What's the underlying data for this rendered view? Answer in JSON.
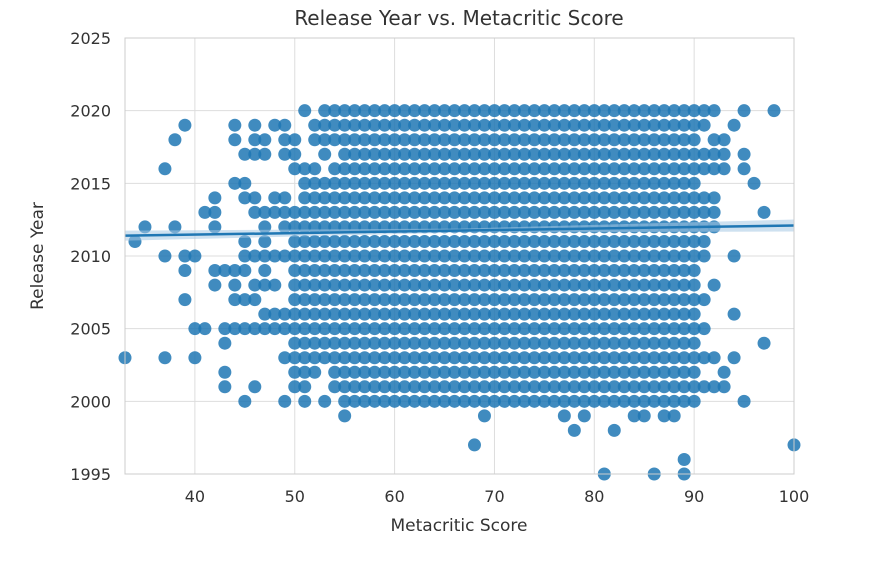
{
  "chart_data": {
    "type": "scatter",
    "title": "Release Year vs. Metacritic Score",
    "xlabel": "Metacritic Score",
    "ylabel": "Release Year",
    "xlim": [
      33,
      100
    ],
    "ylim": [
      1995,
      2025
    ],
    "xticks": [
      40,
      50,
      60,
      70,
      80,
      90,
      100
    ],
    "yticks": [
      1995,
      2000,
      2005,
      2010,
      2015,
      2020,
      2025
    ],
    "grid": true,
    "colors": {
      "points": "#1f77b4",
      "regression": "#1f77b4",
      "ci_band": "#a6c8e4",
      "grid": "#dddddd",
      "frame": "#cccccc"
    },
    "regression": {
      "x": [
        33,
        100
      ],
      "y": [
        2011.4,
        2012.1
      ]
    },
    "dense_region": {
      "x": [
        57,
        89
      ],
      "y": [
        2000,
        2020
      ]
    },
    "points": [
      [
        33,
        2003
      ],
      [
        34,
        2011
      ],
      [
        35,
        2012
      ],
      [
        37,
        2016
      ],
      [
        37,
        2010
      ],
      [
        37,
        2003
      ],
      [
        38,
        2018
      ],
      [
        38,
        2012
      ],
      [
        39,
        2019
      ],
      [
        39,
        2010
      ],
      [
        39,
        2009
      ],
      [
        39,
        2007
      ],
      [
        40,
        2010
      ],
      [
        40,
        2005
      ],
      [
        40,
        2003
      ],
      [
        41,
        2013
      ],
      [
        41,
        2005
      ],
      [
        42,
        2014
      ],
      [
        42,
        2013
      ],
      [
        42,
        2012
      ],
      [
        42,
        2009
      ],
      [
        42,
        2008
      ],
      [
        43,
        2009
      ],
      [
        43,
        2005
      ],
      [
        43,
        2004
      ],
      [
        43,
        2002
      ],
      [
        43,
        2001
      ],
      [
        44,
        2019
      ],
      [
        44,
        2018
      ],
      [
        44,
        2015
      ],
      [
        44,
        2009
      ],
      [
        44,
        2008
      ],
      [
        44,
        2007
      ],
      [
        44,
        2005
      ],
      [
        45,
        2017
      ],
      [
        45,
        2015
      ],
      [
        45,
        2014
      ],
      [
        45,
        2011
      ],
      [
        45,
        2010
      ],
      [
        45,
        2009
      ],
      [
        45,
        2007
      ],
      [
        45,
        2005
      ],
      [
        45,
        2000
      ],
      [
        46,
        2019
      ],
      [
        46,
        2018
      ],
      [
        46,
        2017
      ],
      [
        46,
        2014
      ],
      [
        46,
        2013
      ],
      [
        46,
        2010
      ],
      [
        46,
        2008
      ],
      [
        46,
        2007
      ],
      [
        46,
        2005
      ],
      [
        46,
        2001
      ],
      [
        47,
        2018
      ],
      [
        47,
        2017
      ],
      [
        47,
        2013
      ],
      [
        47,
        2012
      ],
      [
        47,
        2011
      ],
      [
        47,
        2010
      ],
      [
        47,
        2009
      ],
      [
        47,
        2008
      ],
      [
        47,
        2006
      ],
      [
        47,
        2005
      ],
      [
        48,
        2019
      ],
      [
        48,
        2014
      ],
      [
        48,
        2013
      ],
      [
        48,
        2010
      ],
      [
        48,
        2008
      ],
      [
        48,
        2006
      ],
      [
        48,
        2005
      ],
      [
        49,
        2019
      ],
      [
        49,
        2018
      ],
      [
        49,
        2017
      ],
      [
        49,
        2014
      ],
      [
        49,
        2013
      ],
      [
        49,
        2012
      ],
      [
        49,
        2010
      ],
      [
        49,
        2006
      ],
      [
        49,
        2005
      ],
      [
        49,
        2003
      ],
      [
        49,
        2000
      ],
      [
        50,
        2018
      ],
      [
        50,
        2017
      ],
      [
        50,
        2016
      ],
      [
        50,
        2013
      ],
      [
        50,
        2012
      ],
      [
        50,
        2011
      ],
      [
        50,
        2010
      ],
      [
        50,
        2009
      ],
      [
        50,
        2008
      ],
      [
        50,
        2007
      ],
      [
        50,
        2006
      ],
      [
        50,
        2005
      ],
      [
        50,
        2004
      ],
      [
        50,
        2003
      ],
      [
        50,
        2002
      ],
      [
        50,
        2001
      ],
      [
        51,
        2020
      ],
      [
        51,
        2016
      ],
      [
        51,
        2015
      ],
      [
        51,
        2014
      ],
      [
        51,
        2013
      ],
      [
        51,
        2012
      ],
      [
        51,
        2011
      ],
      [
        51,
        2010
      ],
      [
        51,
        2009
      ],
      [
        51,
        2008
      ],
      [
        51,
        2007
      ],
      [
        51,
        2006
      ],
      [
        51,
        2005
      ],
      [
        51,
        2004
      ],
      [
        51,
        2003
      ],
      [
        51,
        2002
      ],
      [
        51,
        2001
      ],
      [
        51,
        2000
      ],
      [
        52,
        2019
      ],
      [
        52,
        2018
      ],
      [
        52,
        2016
      ],
      [
        52,
        2015
      ],
      [
        52,
        2014
      ],
      [
        52,
        2013
      ],
      [
        52,
        2012
      ],
      [
        52,
        2011
      ],
      [
        52,
        2010
      ],
      [
        52,
        2009
      ],
      [
        52,
        2008
      ],
      [
        52,
        2007
      ],
      [
        52,
        2006
      ],
      [
        52,
        2005
      ],
      [
        52,
        2004
      ],
      [
        52,
        2003
      ],
      [
        52,
        2002
      ],
      [
        53,
        2020
      ],
      [
        53,
        2019
      ],
      [
        53,
        2018
      ],
      [
        53,
        2017
      ],
      [
        53,
        2015
      ],
      [
        53,
        2014
      ],
      [
        53,
        2013
      ],
      [
        53,
        2012
      ],
      [
        53,
        2011
      ],
      [
        53,
        2010
      ],
      [
        53,
        2009
      ],
      [
        53,
        2008
      ],
      [
        53,
        2007
      ],
      [
        53,
        2006
      ],
      [
        53,
        2005
      ],
      [
        53,
        2004
      ],
      [
        53,
        2003
      ],
      [
        53,
        2000
      ],
      [
        54,
        2020
      ],
      [
        54,
        2019
      ],
      [
        54,
        2018
      ],
      [
        54,
        2016
      ],
      [
        54,
        2015
      ],
      [
        54,
        2014
      ],
      [
        54,
        2013
      ],
      [
        54,
        2012
      ],
      [
        54,
        2011
      ],
      [
        54,
        2010
      ],
      [
        54,
        2009
      ],
      [
        54,
        2008
      ],
      [
        54,
        2007
      ],
      [
        54,
        2006
      ],
      [
        54,
        2005
      ],
      [
        54,
        2004
      ],
      [
        54,
        2003
      ],
      [
        54,
        2002
      ],
      [
        54,
        2001
      ],
      [
        55,
        2020
      ],
      [
        55,
        2019
      ],
      [
        55,
        2018
      ],
      [
        55,
        2017
      ],
      [
        55,
        2016
      ],
      [
        55,
        2015
      ],
      [
        55,
        2014
      ],
      [
        55,
        2013
      ],
      [
        55,
        2012
      ],
      [
        55,
        2011
      ],
      [
        55,
        2010
      ],
      [
        55,
        2009
      ],
      [
        55,
        2008
      ],
      [
        55,
        2007
      ],
      [
        55,
        2006
      ],
      [
        55,
        2005
      ],
      [
        55,
        2004
      ],
      [
        55,
        2003
      ],
      [
        55,
        2002
      ],
      [
        55,
        2001
      ],
      [
        55,
        2000
      ],
      [
        55,
        1999
      ],
      [
        56,
        2020
      ],
      [
        56,
        2019
      ],
      [
        56,
        2018
      ],
      [
        56,
        2017
      ],
      [
        56,
        2016
      ],
      [
        56,
        2015
      ],
      [
        56,
        2014
      ],
      [
        56,
        2013
      ],
      [
        56,
        2012
      ],
      [
        56,
        2011
      ],
      [
        56,
        2010
      ],
      [
        56,
        2009
      ],
      [
        56,
        2008
      ],
      [
        56,
        2007
      ],
      [
        56,
        2006
      ],
      [
        56,
        2005
      ],
      [
        56,
        2004
      ],
      [
        56,
        2003
      ],
      [
        56,
        2002
      ],
      [
        56,
        2001
      ],
      [
        56,
        2000
      ],
      [
        90,
        2020
      ],
      [
        90,
        2019
      ],
      [
        90,
        2018
      ],
      [
        90,
        2017
      ],
      [
        90,
        2016
      ],
      [
        90,
        2015
      ],
      [
        90,
        2014
      ],
      [
        90,
        2013
      ],
      [
        90,
        2012
      ],
      [
        90,
        2011
      ],
      [
        90,
        2010
      ],
      [
        90,
        2009
      ],
      [
        90,
        2008
      ],
      [
        90,
        2007
      ],
      [
        90,
        2006
      ],
      [
        90,
        2005
      ],
      [
        90,
        2004
      ],
      [
        90,
        2003
      ],
      [
        90,
        2002
      ],
      [
        90,
        2001
      ],
      [
        90,
        2000
      ],
      [
        91,
        2020
      ],
      [
        91,
        2019
      ],
      [
        91,
        2017
      ],
      [
        91,
        2016
      ],
      [
        91,
        2014
      ],
      [
        91,
        2013
      ],
      [
        91,
        2012
      ],
      [
        91,
        2011
      ],
      [
        91,
        2010
      ],
      [
        91,
        2007
      ],
      [
        91,
        2005
      ],
      [
        91,
        2003
      ],
      [
        91,
        2001
      ],
      [
        92,
        2020
      ],
      [
        92,
        2018
      ],
      [
        92,
        2017
      ],
      [
        92,
        2016
      ],
      [
        92,
        2014
      ],
      [
        92,
        2013
      ],
      [
        92,
        2012
      ],
      [
        92,
        2008
      ],
      [
        92,
        2003
      ],
      [
        92,
        2001
      ],
      [
        93,
        2018
      ],
      [
        93,
        2017
      ],
      [
        93,
        2016
      ],
      [
        93,
        2002
      ],
      [
        93,
        2001
      ],
      [
        94,
        2019
      ],
      [
        94,
        2010
      ],
      [
        94,
        2006
      ],
      [
        94,
        2003
      ],
      [
        95,
        2020
      ],
      [
        95,
        2017
      ],
      [
        95,
        2016
      ],
      [
        95,
        2000
      ],
      [
        96,
        2015
      ],
      [
        97,
        2013
      ],
      [
        97,
        2004
      ],
      [
        98,
        2020
      ],
      [
        100,
        1997
      ],
      [
        68,
        1997
      ],
      [
        69,
        1999
      ],
      [
        78,
        1998
      ],
      [
        81,
        1995
      ],
      [
        82,
        1998
      ],
      [
        86,
        1995
      ],
      [
        89,
        1996
      ],
      [
        89,
        1995
      ],
      [
        77,
        1999
      ],
      [
        79,
        1999
      ],
      [
        84,
        1999
      ],
      [
        85,
        1999
      ],
      [
        87,
        1999
      ],
      [
        88,
        1999
      ]
    ]
  }
}
